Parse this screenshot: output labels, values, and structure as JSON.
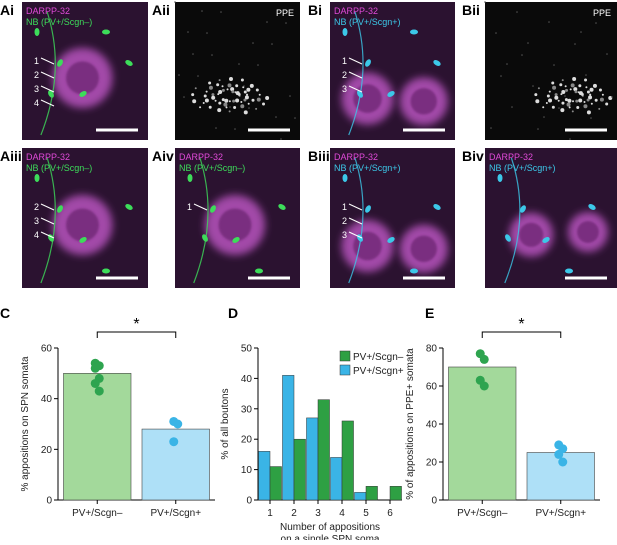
{
  "panels": [
    {
      "label": "Ai",
      "texts": [
        "DARPP-32",
        "NB (PV+/Scgn–)"
      ],
      "arrows": [
        "1",
        "2",
        "3",
        "4"
      ]
    },
    {
      "label": "Aii",
      "texts": [
        "PPE"
      ],
      "arrows": []
    },
    {
      "label": "Bi",
      "texts": [
        "DARPP-32",
        "NB (PV+/Scgn+)"
      ],
      "arrows": [
        "1",
        "2",
        "3"
      ]
    },
    {
      "label": "Bii",
      "texts": [
        "PPE"
      ],
      "arrows": []
    },
    {
      "label": "Aiii",
      "texts": [
        "DARPP-32",
        "NB (PV+/Scgn–)"
      ],
      "arrows": [
        "2",
        "3",
        "4"
      ]
    },
    {
      "label": "Aiv",
      "texts": [
        "DARPP-32",
        "NB (PV+/Scgn–)"
      ],
      "arrows": [
        "1"
      ]
    },
    {
      "label": "Biii",
      "texts": [
        "DARPP-32",
        "NB (PV+/Scgn+)"
      ],
      "arrows": [
        "1",
        "2",
        "3"
      ]
    },
    {
      "label": "Biv",
      "texts": [
        "DARPP-32",
        "NB (PV+/Scgn+)"
      ],
      "arrows": []
    }
  ],
  "chart_data": [
    {
      "type": "bar",
      "panel": "C",
      "ylabel": "% appositions on SPN somata",
      "categories": [
        "PV+/Scgn–",
        "PV+/Scgn+"
      ],
      "values": [
        50,
        28
      ],
      "colors": [
        "#a3d99b",
        "#aee0f7"
      ],
      "dot_colors": [
        "#2ea44f",
        "#3ab4e6"
      ],
      "points": [
        [
          54,
          53,
          52,
          48,
          46,
          43
        ],
        [
          31,
          30,
          23
        ]
      ],
      "ylim": [
        0,
        60
      ],
      "yticks": [
        0,
        20,
        40,
        60
      ],
      "annotation": "*"
    },
    {
      "type": "histogram",
      "panel": "D",
      "ylabel": "% of all boutons",
      "xlabel": [
        "Number of appositions",
        "on a single SPN soma"
      ],
      "x": [
        1,
        2,
        3,
        4,
        5,
        6
      ],
      "series": [
        {
          "name": "PV+/Scgn–",
          "color": "#2ea043",
          "values": [
            11,
            20,
            33,
            26,
            4.5,
            4.5
          ]
        },
        {
          "name": "PV+/Scgn+",
          "color": "#3ab4e6",
          "values": [
            16,
            41,
            27,
            14,
            2.5,
            null
          ]
        }
      ],
      "xlim": [
        0.5,
        6.5
      ],
      "xticks": [
        1,
        2,
        3,
        4,
        5,
        6
      ],
      "ylim": [
        0,
        50
      ],
      "yticks": [
        0,
        10,
        20,
        30,
        40,
        50
      ],
      "legend": "upper right"
    },
    {
      "type": "bar",
      "panel": "E",
      "ylabel": "% of appositions on PPE+ somata",
      "categories": [
        "PV+/Scgn–",
        "PV+/Scgn+"
      ],
      "values": [
        70,
        25
      ],
      "colors": [
        "#a3d99b",
        "#aee0f7"
      ],
      "dot_colors": [
        "#2ea44f",
        "#3ab4e6"
      ],
      "points": [
        [
          77,
          74,
          63,
          60
        ],
        [
          29,
          27,
          24,
          20
        ]
      ],
      "ylim": [
        0,
        80
      ],
      "yticks": [
        0,
        20,
        40,
        60,
        80
      ],
      "annotation": "*"
    }
  ]
}
